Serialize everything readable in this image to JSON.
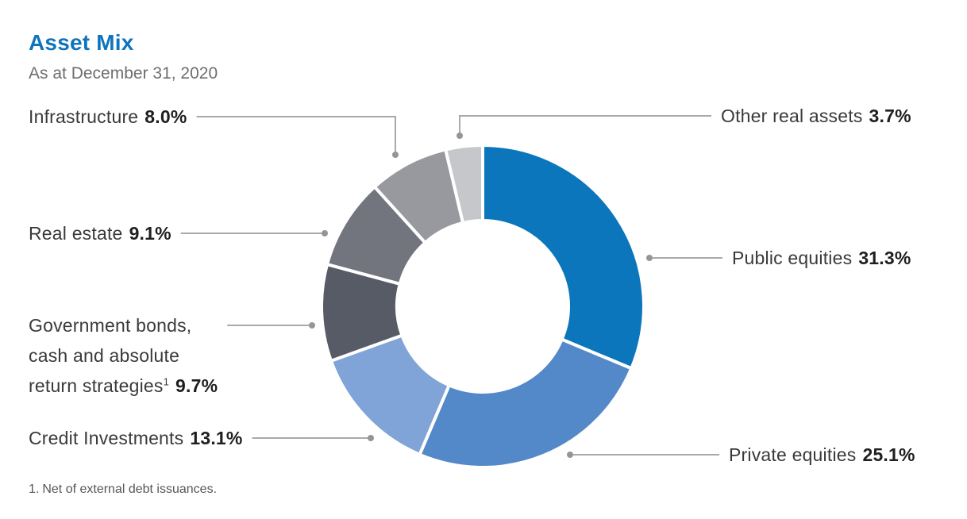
{
  "header": {
    "title": "Asset Mix",
    "subtitle": "As at December 31, 2020"
  },
  "chart_data": {
    "type": "pie",
    "subtype": "donut",
    "title": "Asset Mix",
    "subtitle": "As at December 31, 2020",
    "unit": "%",
    "direction": "clockwise",
    "start_angle_deg": 0,
    "inner_radius_ratio": 0.535,
    "slices": [
      {
        "id": "public-equities",
        "label": "Public equities",
        "value": 31.3,
        "display": "31.3%",
        "color": "#0b76bc"
      },
      {
        "id": "private-equities",
        "label": "Private equities",
        "value": 25.1,
        "display": "25.1%",
        "color": "#5389c8"
      },
      {
        "id": "credit-investments",
        "label": "Credit Investments",
        "value": 13.1,
        "display": "13.1%",
        "color": "#80a3d8"
      },
      {
        "id": "government-bonds",
        "label": "Government bonds, cash and absolute return strategies",
        "footnote_ref": "1",
        "value": 9.7,
        "display": "9.7%",
        "color": "#565b66"
      },
      {
        "id": "real-estate",
        "label": "Real estate",
        "value": 9.1,
        "display": "9.1%",
        "color": "#72757d"
      },
      {
        "id": "infrastructure",
        "label": "Infrastructure",
        "value": 8.0,
        "display": "8.0%",
        "color": "#98999f"
      },
      {
        "id": "other-real-assets",
        "label": "Other real assets",
        "value": 3.7,
        "display": "3.7%",
        "color": "#c6c7ca"
      }
    ],
    "leader_line_color": "#a7a9ac",
    "leader_dot_color": "#939598"
  },
  "callouts": {
    "infrastructure": {
      "text": "Infrastructure",
      "pct": "8.0%"
    },
    "real_estate": {
      "text": "Real estate",
      "pct": "9.1%"
    },
    "government_bonds": {
      "line1": "Government bonds,",
      "line2": "cash and absolute",
      "line3": "return strategies",
      "footnote_marker": "1",
      "pct": "9.7%"
    },
    "credit_investments": {
      "text": "Credit Investments",
      "pct": "13.1%"
    },
    "other_real_assets": {
      "text": "Other real assets",
      "pct": "3.7%"
    },
    "public_equities": {
      "text": "Public equities",
      "pct": "31.3%"
    },
    "private_equities": {
      "text": "Private equities",
      "pct": "25.1%"
    }
  },
  "footnote": {
    "marker": "1.",
    "text": "Net of external debt issuances."
  }
}
